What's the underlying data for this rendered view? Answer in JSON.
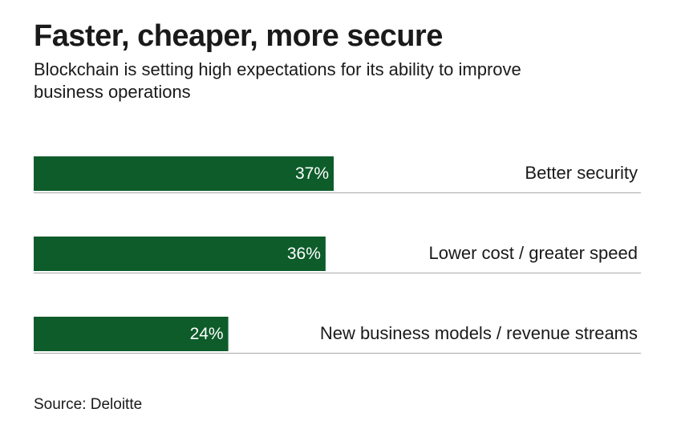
{
  "header": {
    "title": "Faster, cheaper, more secure",
    "subtitle": "Blockchain is setting high expectations for its ability to improve business operations"
  },
  "chart_data": {
    "type": "bar",
    "orientation": "horizontal",
    "title": "Faster, cheaper, more secure",
    "subtitle": "Blockchain is setting high expectations for its ability to improve business operations",
    "categories": [
      "Better security",
      "Lower cost / greater speed",
      "New business models / revenue streams"
    ],
    "values": [
      37,
      36,
      24
    ],
    "value_labels": [
      "37%",
      "36%",
      "24%"
    ],
    "unit": "%",
    "xlabel": "",
    "ylabel": "",
    "xlim": [
      0,
      100
    ],
    "grid": false,
    "bar_color": "#0d5c2a",
    "baseline_color": "#aaaaaa"
  },
  "footer": {
    "source": "Source: Deloitte"
  }
}
